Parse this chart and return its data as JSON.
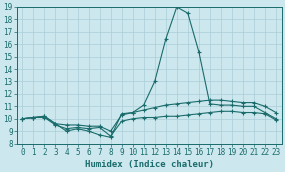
{
  "xlabel": "Humidex (Indice chaleur)",
  "xlim": [
    -0.5,
    23.5
  ],
  "ylim": [
    8,
    19
  ],
  "yticks": [
    8,
    9,
    10,
    11,
    12,
    13,
    14,
    15,
    16,
    17,
    18,
    19
  ],
  "xticks": [
    0,
    1,
    2,
    3,
    4,
    5,
    6,
    7,
    8,
    9,
    10,
    11,
    12,
    13,
    14,
    15,
    16,
    17,
    18,
    19,
    20,
    21,
    22,
    23
  ],
  "bg_color": "#cce8ee",
  "grid_color": "#aacdd6",
  "line_color": "#1a6b6b",
  "lines": [
    {
      "x": [
        0,
        1,
        2,
        3,
        4,
        5,
        6,
        7,
        8,
        9,
        10,
        11,
        12,
        13,
        14,
        15,
        16,
        17,
        18,
        19,
        20,
        21,
        22,
        23
      ],
      "y": [
        10.0,
        10.1,
        10.1,
        9.5,
        9.2,
        9.3,
        9.2,
        9.3,
        8.6,
        9.8,
        10.0,
        10.1,
        10.1,
        10.2,
        10.2,
        10.3,
        10.4,
        10.5,
        10.6,
        10.6,
        10.5,
        10.5,
        10.4,
        9.9
      ]
    },
    {
      "x": [
        0,
        1,
        2,
        3,
        4,
        5,
        6,
        7,
        8,
        9,
        10,
        11,
        12,
        13,
        14,
        15,
        16,
        17,
        18,
        19,
        20,
        21,
        22,
        23
      ],
      "y": [
        10.0,
        10.1,
        10.2,
        9.6,
        9.5,
        9.5,
        9.4,
        9.4,
        9.0,
        10.3,
        10.5,
        10.7,
        10.9,
        11.1,
        11.2,
        11.3,
        11.4,
        11.5,
        11.5,
        11.4,
        11.3,
        11.3,
        11.0,
        10.5
      ]
    },
    {
      "x": [
        0,
        1,
        2,
        3,
        4,
        5,
        6,
        7,
        8,
        9,
        10,
        11,
        12,
        13,
        14,
        15,
        16,
        17,
        18,
        19,
        20,
        21,
        22,
        23
      ],
      "y": [
        10.0,
        10.1,
        10.2,
        9.6,
        9.0,
        9.2,
        9.0,
        8.7,
        8.5,
        10.4,
        10.5,
        11.1,
        13.0,
        16.4,
        19.0,
        18.5,
        15.4,
        11.2,
        11.1,
        11.1,
        11.0,
        11.0,
        10.5,
        10.0
      ]
    }
  ]
}
